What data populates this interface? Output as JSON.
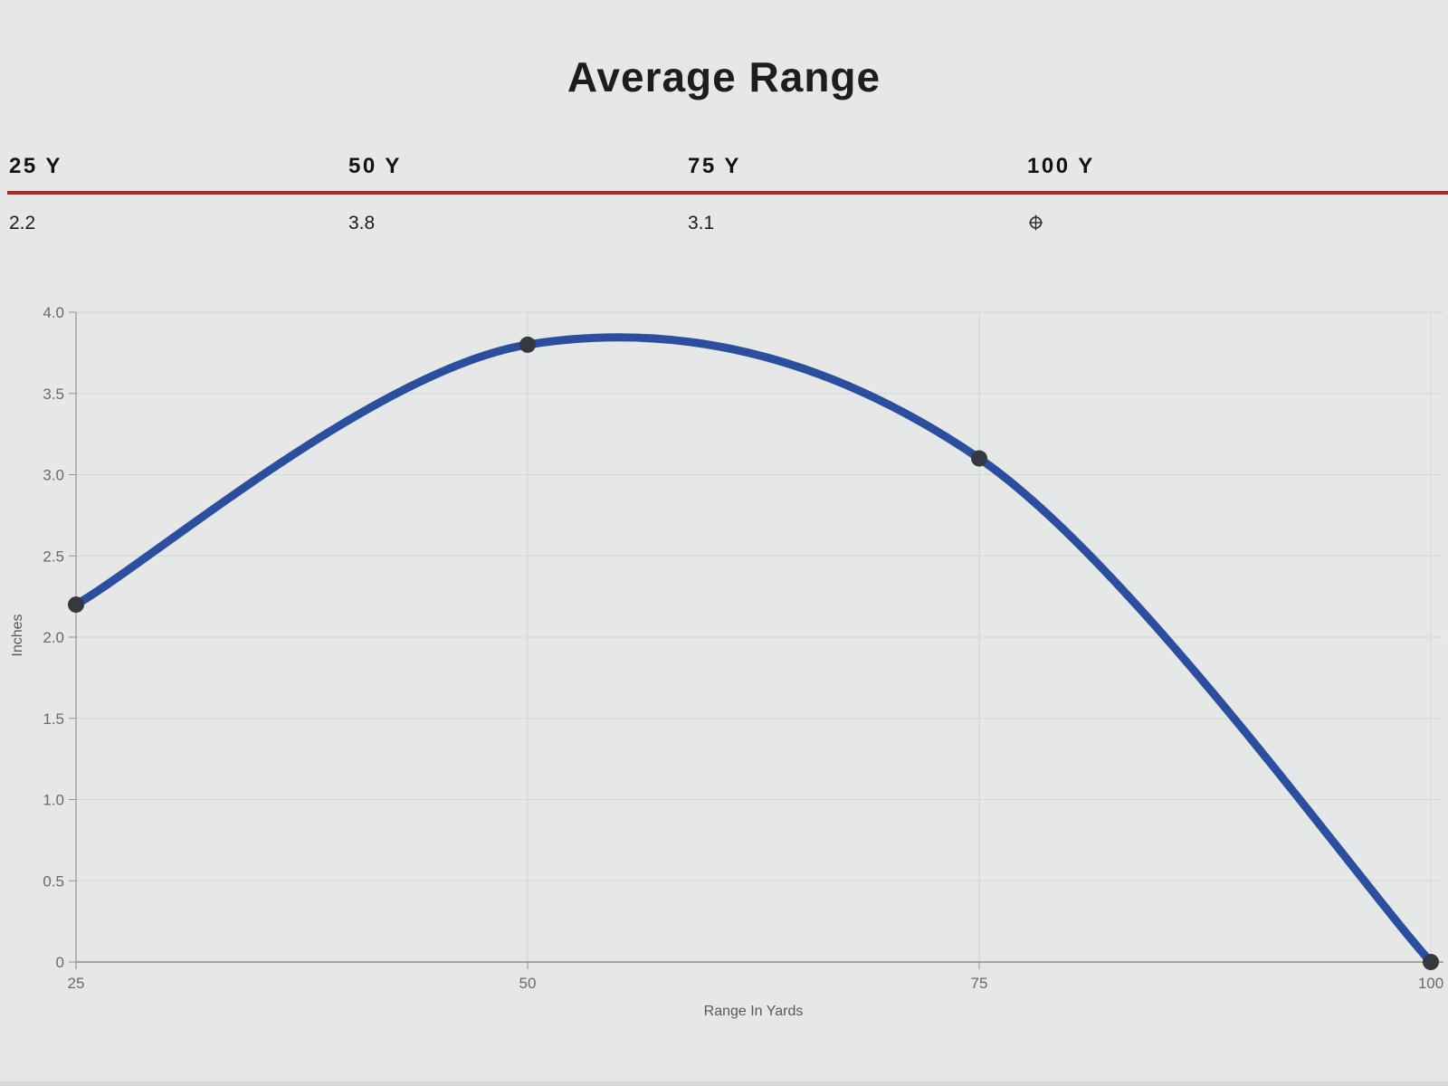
{
  "header": {
    "title": "Average Range"
  },
  "summary": {
    "columns": [
      {
        "label": "25 Y",
        "value": "2.2"
      },
      {
        "label": "50 Y",
        "value": "3.8"
      },
      {
        "label": "75 Y",
        "value": "3.1"
      },
      {
        "label": "100 Y",
        "value": "",
        "value_icon": "target-crosshair"
      }
    ],
    "divider_color": "#b1262a"
  },
  "chart_data": {
    "type": "line",
    "title": "Average Range",
    "xlabel": "Range In Yards",
    "ylabel": "Inches",
    "x": [
      25,
      50,
      75,
      100
    ],
    "series": [
      {
        "name": "Average Range",
        "values": [
          2.2,
          3.8,
          3.1,
          0
        ]
      }
    ],
    "xlim": [
      25,
      100
    ],
    "ylim": [
      0,
      4
    ],
    "xticks": [
      25,
      50,
      75,
      100
    ],
    "xtick_labels": [
      "25",
      "50",
      "75",
      "100"
    ],
    "yticks": [
      0,
      0.5,
      1,
      1.5,
      2,
      2.5,
      3,
      3.5,
      4
    ],
    "ytick_labels": [
      "0",
      "0.5",
      "1.0",
      "1.5",
      "2.0",
      "2.5",
      "3.0",
      "3.5",
      "4.0"
    ],
    "grid": true,
    "legend": false,
    "smooth": true,
    "line_color": "#2b4f9e",
    "marker_color": "#35393f",
    "gridline_color": "#d6d6d7",
    "axis_color": "#929294",
    "background_color": "#e6e7e7"
  }
}
